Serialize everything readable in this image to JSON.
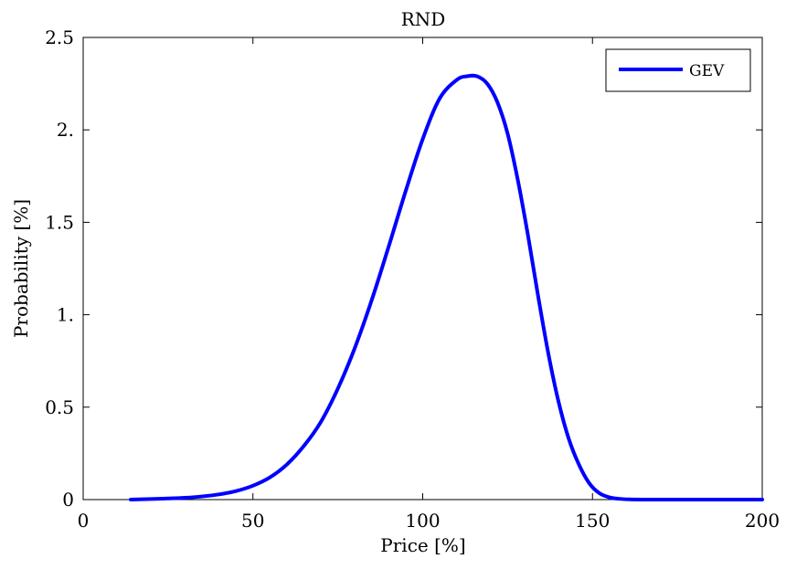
{
  "chart_data": {
    "type": "line",
    "title": "RND",
    "xlabel": "Price [%]",
    "ylabel": "Probability [%]",
    "xlim": [
      0,
      200
    ],
    "ylim": [
      0,
      2.5
    ],
    "xticks": [
      0,
      50,
      100,
      150,
      200
    ],
    "xtick_labels": [
      "0",
      "50",
      "100",
      "150",
      "200"
    ],
    "yticks": [
      0,
      0.5,
      1,
      1.5,
      2,
      2.5
    ],
    "ytick_labels": [
      "0",
      "0.5",
      "1.",
      "1.5",
      "2.",
      "2.5"
    ],
    "grid": false,
    "legend_position": "top-right",
    "series": [
      {
        "name": "GEV",
        "color": "#0000ff",
        "x": [
          14,
          20,
          25,
          30,
          35,
          40,
          45,
          50,
          55,
          60,
          65,
          70,
          75,
          80,
          85,
          90,
          95,
          100,
          105,
          110,
          113,
          116,
          119,
          122,
          125,
          128,
          131,
          134,
          137,
          140,
          143,
          146,
          149,
          152,
          155,
          158,
          161,
          165,
          170,
          180,
          190,
          200
        ],
        "y": [
          0.0,
          0.003,
          0.006,
          0.01,
          0.017,
          0.028,
          0.046,
          0.075,
          0.12,
          0.19,
          0.29,
          0.42,
          0.6,
          0.82,
          1.08,
          1.37,
          1.67,
          1.95,
          2.17,
          2.27,
          2.29,
          2.29,
          2.25,
          2.15,
          1.98,
          1.73,
          1.43,
          1.1,
          0.79,
          0.53,
          0.33,
          0.19,
          0.09,
          0.035,
          0.012,
          0.004,
          0.001,
          0.0,
          0.0,
          0.0,
          0.0,
          0.0
        ]
      }
    ]
  }
}
